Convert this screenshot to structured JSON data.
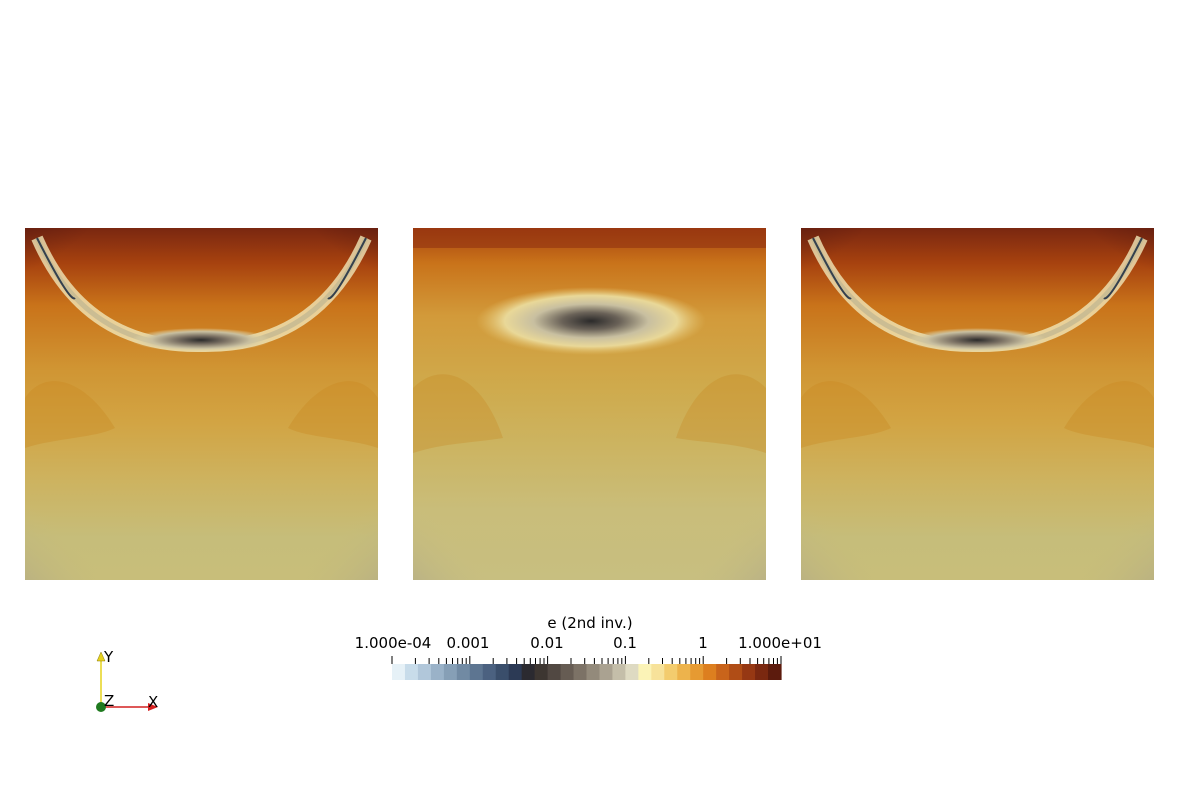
{
  "panels": [
    {
      "name": "panel-left",
      "variant": "sym"
    },
    {
      "name": "panel-middle",
      "variant": "center"
    },
    {
      "name": "panel-right",
      "variant": "sym"
    }
  ],
  "colorbar": {
    "title": "e (2nd inv.)",
    "labels": [
      "1.000e-04",
      "0.001",
      "0.01",
      "0.1",
      "1",
      "1.000e+01"
    ],
    "colors": [
      "#e6f1f7",
      "#c8dcea",
      "#b1c7da",
      "#9ab2c8",
      "#869fb6",
      "#718aa3",
      "#5d7591",
      "#4b6180",
      "#3a4e6b",
      "#2c3a55",
      "#2b2a30",
      "#3d3631",
      "#514842",
      "#665c53",
      "#7c7266",
      "#938a7b",
      "#aaa291",
      "#c4bea9",
      "#dedac2",
      "#fbf3b7",
      "#f7e29a",
      "#f3cc6e",
      "#edb34c",
      "#e69a32",
      "#dd7f1f",
      "#c9641b",
      "#b04d16",
      "#963813",
      "#7a2810",
      "#5c1b0d"
    ]
  },
  "axes": {
    "x_label": "X",
    "y_label": "Y",
    "z_label": "Z",
    "x_color": "#d42020",
    "y_color": "#e6d21e",
    "z_color": "#1f7a1f"
  }
}
